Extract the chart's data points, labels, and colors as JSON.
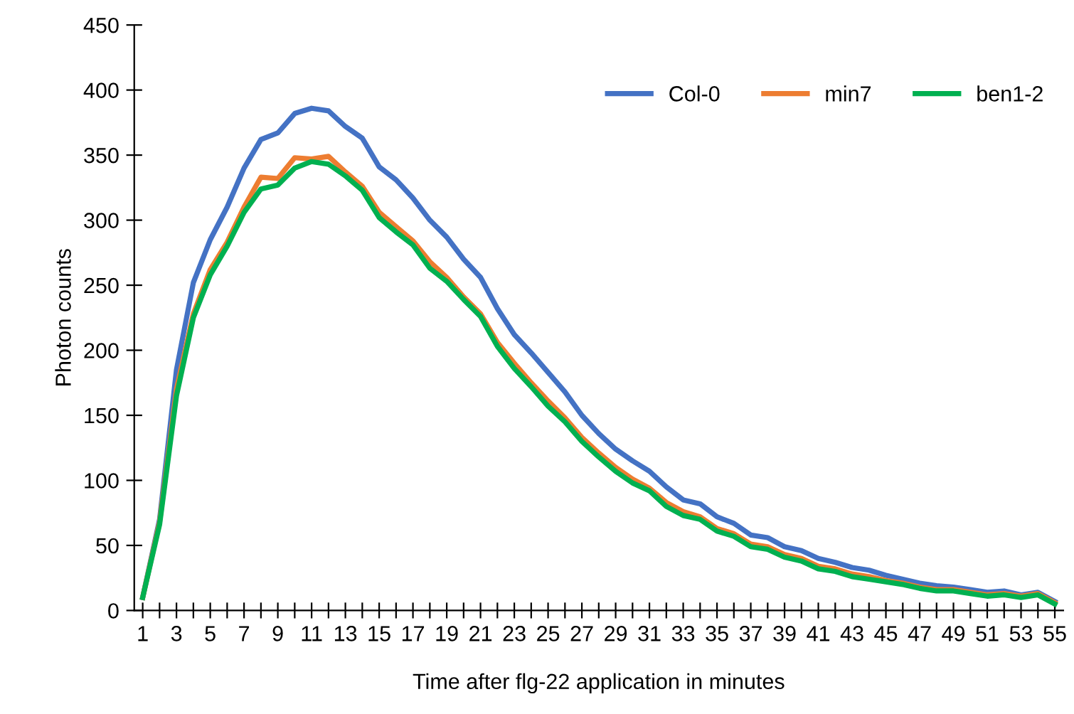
{
  "chart_data": {
    "type": "line",
    "xlabel": "Time after flg-22 application in minutes",
    "ylabel": "Photon counts",
    "categories": [
      "1",
      null,
      "3",
      null,
      "5",
      null,
      "7",
      null,
      "9",
      null,
      "11",
      null,
      "13",
      null,
      "15",
      null,
      "17",
      null,
      "19",
      null,
      "21",
      null,
      "23",
      null,
      "25",
      null,
      "27",
      null,
      "29",
      null,
      "31",
      null,
      "33",
      null,
      "35",
      null,
      "37",
      null,
      "39",
      null,
      "41",
      null,
      "43",
      null,
      "45",
      null,
      "47",
      null,
      "49",
      null,
      "51",
      null,
      "53",
      null,
      "55"
    ],
    "ylim": [
      0,
      450
    ],
    "yticks": [
      0,
      50,
      100,
      150,
      200,
      250,
      300,
      350,
      400,
      450
    ],
    "grid": false,
    "legend": "top right",
    "marker": "none",
    "line_style": "solid",
    "series": [
      {
        "name": "Col-0",
        "color": "#4472c4",
        "values": [
          10,
          70,
          185,
          252,
          285,
          310,
          340,
          362,
          367,
          382,
          386,
          384,
          372,
          363,
          341,
          331,
          317,
          300,
          287,
          270,
          256,
          232,
          212,
          198,
          183,
          168,
          150,
          136,
          124,
          115,
          107,
          95,
          85,
          82,
          72,
          67,
          58,
          56,
          49,
          46,
          40,
          37,
          33,
          31,
          27,
          24,
          21,
          19,
          18,
          16,
          14,
          15,
          12,
          14,
          7
        ]
      },
      {
        "name": "min7",
        "color": "#ed7d31",
        "values": [
          10,
          68,
          170,
          228,
          262,
          283,
          310,
          333,
          332,
          348,
          347,
          349,
          337,
          326,
          306,
          295,
          284,
          268,
          256,
          241,
          228,
          206,
          190,
          175,
          161,
          148,
          133,
          121,
          110,
          101,
          94,
          83,
          76,
          72,
          63,
          59,
          51,
          49,
          43,
          40,
          34,
          32,
          28,
          26,
          23,
          21,
          18,
          16,
          16,
          14,
          12,
          13,
          11,
          13,
          6
        ]
      },
      {
        "name": "ben1-2",
        "color": "#00b050",
        "values": [
          10,
          66,
          165,
          225,
          258,
          280,
          306,
          324,
          327,
          340,
          345,
          343,
          334,
          323,
          302,
          291,
          281,
          263,
          253,
          239,
          226,
          203,
          186,
          172,
          157,
          145,
          130,
          118,
          107,
          98,
          92,
          80,
          73,
          70,
          61,
          57,
          49,
          47,
          41,
          38,
          32,
          30,
          26,
          24,
          22,
          20,
          17,
          15,
          15,
          13,
          11,
          12,
          10,
          12,
          5
        ]
      }
    ]
  }
}
